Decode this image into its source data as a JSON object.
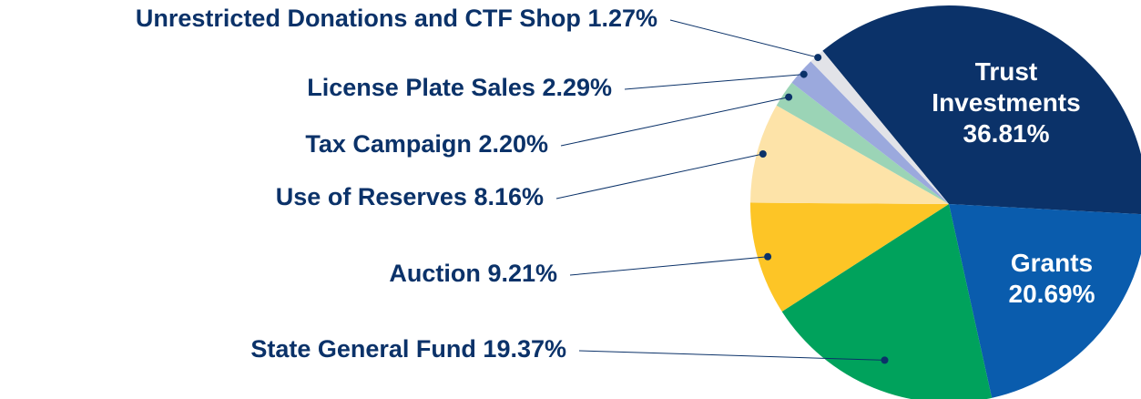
{
  "chart_data": {
    "type": "pie",
    "categories": [
      "Trust Investments",
      "Grants",
      "State General Fund",
      "Auction",
      "Use of Reserves",
      "Tax Campaign",
      "License Plate Sales",
      "Unrestricted Donations and CTF Shop"
    ],
    "values": [
      36.81,
      20.69,
      19.37,
      9.21,
      8.16,
      2.2,
      2.29,
      1.27
    ],
    "value_labels": [
      "36.81%",
      "20.69%",
      "19.37%",
      "9.21%",
      "8.16%",
      "2.20%",
      "2.29%",
      "1.27%"
    ],
    "colors": [
      "#0b3269",
      "#0a5cad",
      "#00a25c",
      "#fdc526",
      "#fde3a8",
      "#9bd4b6",
      "#9ba9dd",
      "#e2e3e8"
    ]
  }
}
